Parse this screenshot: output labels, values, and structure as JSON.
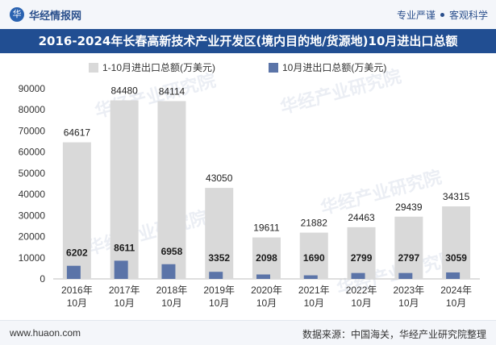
{
  "header": {
    "brand": "华经情报网",
    "brand_icon": "华",
    "motto_left": "专业严谨",
    "motto_right": "客观科学"
  },
  "title": "2016-2024年长春高新技术产业开发区(境内目的地/货源地)10月进出口总额",
  "footer": {
    "site": "www.huaon.com",
    "source": "数据来源：中国海关，华经产业研究院整理"
  },
  "watermark": "华经产业研究院",
  "colors": {
    "series1": "#d9d9d9",
    "series2": "#5b74a8",
    "title_bg": "#214e92"
  },
  "chart_data": {
    "type": "bar",
    "title": "2016-2024年长春高新技术产业开发区(境内目的地/货源地)10月进出口总额",
    "categories": [
      "2016年\n10月",
      "2017年\n10月",
      "2018年\n10月",
      "2019年\n10月",
      "2020年\n10月",
      "2021年\n10月",
      "2022年\n10月",
      "2023年\n10月",
      "2024年\n10月"
    ],
    "series": [
      {
        "name": "1-10月进出口总额(万美元)",
        "values": [
          64617,
          84480,
          84114,
          43050,
          19611,
          21882,
          24463,
          29439,
          34315
        ]
      },
      {
        "name": "10月进出口总额(万美元)",
        "values": [
          6202,
          8611,
          6958,
          3352,
          2098,
          1690,
          2799,
          2797,
          3059
        ]
      }
    ],
    "ylim": [
      0,
      90000
    ],
    "yticks": [
      0,
      10000,
      20000,
      30000,
      40000,
      50000,
      60000,
      70000,
      80000,
      90000
    ],
    "xlabel": "",
    "ylabel": "",
    "legend": "top-center",
    "grid": false
  }
}
